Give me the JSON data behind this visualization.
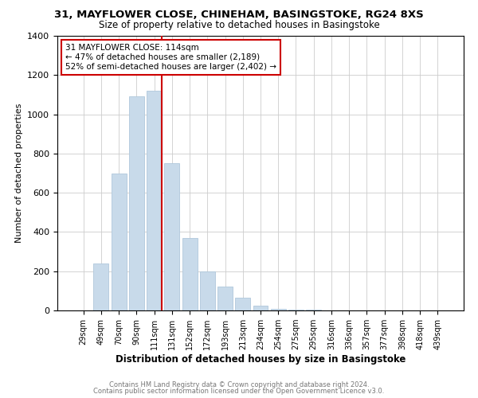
{
  "title1": "31, MAYFLOWER CLOSE, CHINEHAM, BASINGSTOKE, RG24 8XS",
  "title2": "Size of property relative to detached houses in Basingstoke",
  "xlabel": "Distribution of detached houses by size in Basingstoke",
  "ylabel": "Number of detached properties",
  "footnote1": "Contains HM Land Registry data © Crown copyright and database right 2024.",
  "footnote2": "Contains public sector information licensed under the Open Government Licence v3.0.",
  "bar_color": "#c8daea",
  "bar_edge_color": "#b0c8dc",
  "property_line_color": "#cc0000",
  "annotation_box_color": "#cc0000",
  "categories": [
    "29sqm",
    "49sqm",
    "70sqm",
    "90sqm",
    "111sqm",
    "131sqm",
    "152sqm",
    "172sqm",
    "193sqm",
    "213sqm",
    "234sqm",
    "254sqm",
    "275sqm",
    "295sqm",
    "316sqm",
    "336sqm",
    "357sqm",
    "377sqm",
    "398sqm",
    "418sqm",
    "439sqm"
  ],
  "values": [
    0,
    240,
    700,
    1090,
    1120,
    750,
    370,
    200,
    120,
    65,
    25,
    10,
    5,
    3,
    2,
    1,
    1,
    1,
    0,
    0,
    0
  ],
  "property_label": "31 MAYFLOWER CLOSE: 114sqm",
  "annotation_line1": "← 47% of detached houses are smaller (2,189)",
  "annotation_line2": "52% of semi-detached houses are larger (2,402) →",
  "property_bin_index": 4,
  "ylim": [
    0,
    1400
  ],
  "yticks": [
    0,
    200,
    400,
    600,
    800,
    1000,
    1200,
    1400
  ],
  "background_color": "#ffffff",
  "grid_color": "#cccccc"
}
